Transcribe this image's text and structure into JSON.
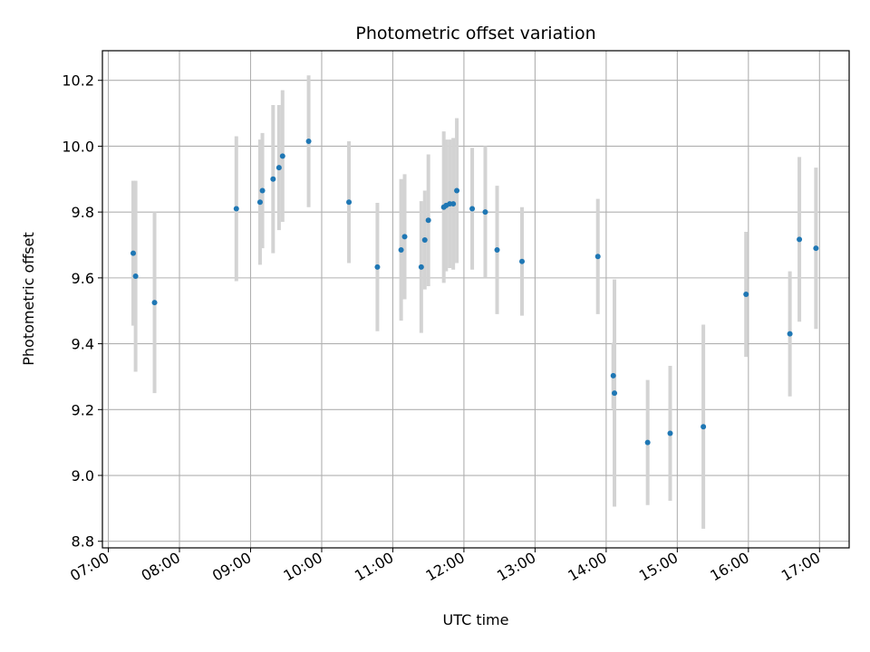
{
  "chart_data": {
    "type": "scatter",
    "title": "Photometric offset variation",
    "xlabel": "UTC time",
    "ylabel": "Photometric offset",
    "xlim": [
      "06:55",
      "17:25"
    ],
    "ylim": [
      8.78,
      10.29
    ],
    "xticks": [
      "07:00",
      "08:00",
      "09:00",
      "10:00",
      "11:00",
      "12:00",
      "13:00",
      "14:00",
      "15:00",
      "16:00",
      "17:00"
    ],
    "yticks": [
      8.8,
      9.0,
      9.2,
      9.4,
      9.6,
      9.8,
      10.0,
      10.2
    ],
    "ytick_labels": [
      "8.8",
      "9.0",
      "9.2",
      "9.4",
      "9.6",
      "9.8",
      "10.0",
      "10.2"
    ],
    "grid": true,
    "marker_color": "#1f77b4",
    "errorbar_color": "#d3d3d3",
    "points": [
      {
        "time": "07:21",
        "y": 9.675,
        "err": 0.22
      },
      {
        "time": "07:23",
        "y": 9.605,
        "err": 0.29
      },
      {
        "time": "07:39",
        "y": 9.525,
        "err": 0.275
      },
      {
        "time": "08:48",
        "y": 9.81,
        "err": 0.22
      },
      {
        "time": "09:08",
        "y": 9.83,
        "err": 0.19
      },
      {
        "time": "09:10",
        "y": 9.865,
        "err": 0.175
      },
      {
        "time": "09:19",
        "y": 9.9,
        "err": 0.225
      },
      {
        "time": "09:24",
        "y": 9.935,
        "err": 0.19
      },
      {
        "time": "09:27",
        "y": 9.97,
        "err": 0.2
      },
      {
        "time": "09:49",
        "y": 10.015,
        "err": 0.2
      },
      {
        "time": "10:23",
        "y": 9.83,
        "err": 0.185
      },
      {
        "time": "10:47",
        "y": 9.633,
        "err": 0.195
      },
      {
        "time": "11:07",
        "y": 9.685,
        "err": 0.215
      },
      {
        "time": "11:10",
        "y": 9.725,
        "err": 0.19
      },
      {
        "time": "11:24",
        "y": 9.633,
        "err": 0.2
      },
      {
        "time": "11:27",
        "y": 9.715,
        "err": 0.15
      },
      {
        "time": "11:30",
        "y": 9.775,
        "err": 0.2
      },
      {
        "time": "11:43",
        "y": 9.815,
        "err": 0.23
      },
      {
        "time": "11:45",
        "y": 9.82,
        "err": 0.2
      },
      {
        "time": "11:48",
        "y": 9.825,
        "err": 0.195
      },
      {
        "time": "11:51",
        "y": 9.825,
        "err": 0.2
      },
      {
        "time": "11:54",
        "y": 9.865,
        "err": 0.22
      },
      {
        "time": "12:07",
        "y": 9.81,
        "err": 0.185
      },
      {
        "time": "12:18",
        "y": 9.8,
        "err": 0.2
      },
      {
        "time": "12:28",
        "y": 9.685,
        "err": 0.195
      },
      {
        "time": "12:49",
        "y": 9.65,
        "err": 0.165
      },
      {
        "time": "13:53",
        "y": 9.665,
        "err": 0.175
      },
      {
        "time": "14:06",
        "y": 9.303,
        "err": 0.1
      },
      {
        "time": "14:07",
        "y": 9.25,
        "err": 0.345
      },
      {
        "time": "14:35",
        "y": 9.1,
        "err": 0.19
      },
      {
        "time": "14:54",
        "y": 9.128,
        "err": 0.205
      },
      {
        "time": "15:22",
        "y": 9.148,
        "err": 0.31
      },
      {
        "time": "15:58",
        "y": 9.55,
        "err": 0.19
      },
      {
        "time": "16:35",
        "y": 9.43,
        "err": 0.19
      },
      {
        "time": "16:43",
        "y": 9.717,
        "err": 0.25
      },
      {
        "time": "16:57",
        "y": 9.69,
        "err": 0.245
      }
    ]
  }
}
